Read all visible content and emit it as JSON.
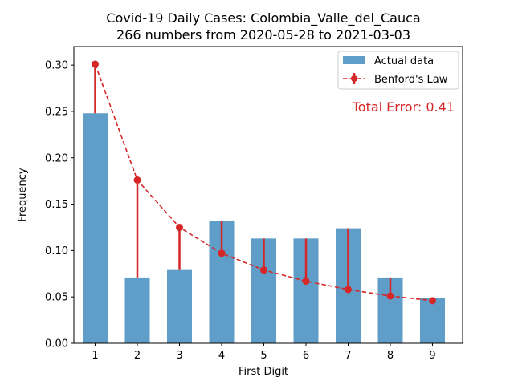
{
  "chart_data": {
    "type": "bar",
    "title_line1": "Covid-19 Daily Cases: Colombia_Valle_del_Cauca",
    "title_line2": "266 numbers from 2020-05-28 to 2021-03-03",
    "xlabel": "First Digit",
    "ylabel": "Frequency",
    "categories": [
      "1",
      "2",
      "3",
      "4",
      "5",
      "6",
      "7",
      "8",
      "9"
    ],
    "ylim": [
      0,
      0.32
    ],
    "yticks": [
      0.0,
      0.05,
      0.1,
      0.15,
      0.2,
      0.25,
      0.3
    ],
    "ytick_labels": [
      "0.00",
      "0.05",
      "0.10",
      "0.15",
      "0.20",
      "0.25",
      "0.30"
    ],
    "series": [
      {
        "name": "Actual data",
        "kind": "bar",
        "color": "#5f9ec9",
        "values": [
          0.248,
          0.071,
          0.079,
          0.132,
          0.113,
          0.113,
          0.124,
          0.071,
          0.049
        ]
      },
      {
        "name": "Benford's Law",
        "kind": "line-errorbar",
        "color": "#d62728",
        "values": [
          0.301,
          0.176,
          0.125,
          0.097,
          0.079,
          0.067,
          0.058,
          0.051,
          0.046
        ]
      }
    ],
    "annotation": {
      "text": "Total Error: 0.41",
      "color": "#d62728"
    },
    "legend_position": "top-right",
    "grid": false
  }
}
